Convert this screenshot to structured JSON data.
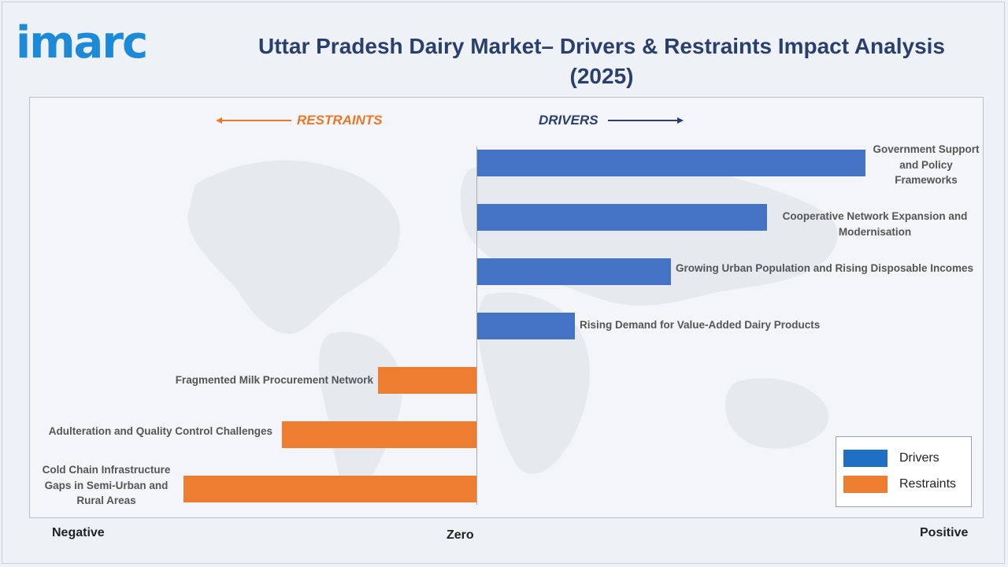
{
  "logo": "imarc",
  "chart_data": {
    "type": "bar",
    "orientation": "horizontal",
    "title": "Uttar Pradesh Dairy Market– Drivers & Restraints Impact Analysis (2025)",
    "direction_labels": {
      "negative": "RESTRAINTS",
      "positive": "DRIVERS"
    },
    "x_axis_labels": {
      "left": "Negative",
      "center": "Zero",
      "right": "Positive"
    },
    "xlim": [
      -1,
      1
    ],
    "categories": [
      "Government Support and Policy Frameworks",
      "Cooperative Network Expansion and Modernisation",
      "Growing Urban Population and Rising Disposable Incomes",
      "Rising Demand for Value-Added Dairy Products",
      "Fragmented Milk Procurement Network",
      "Adulteration and Quality Control Challenges",
      "Cold Chain Infrastructure Gaps in Semi-Urban and Rural Areas"
    ],
    "series": [
      {
        "name": "Drivers",
        "color": "#4472c4",
        "values": [
          0.87,
          0.65,
          0.435,
          0.22,
          0,
          0,
          0
        ]
      },
      {
        "name": "Restraints",
        "color": "#ed7d31",
        "values": [
          0,
          0,
          0,
          0,
          -0.22,
          -0.435,
          -0.655
        ]
      }
    ],
    "legend": {
      "position": "bottom-right",
      "items": [
        {
          "label": "Drivers",
          "color": "#1f6fc5"
        },
        {
          "label": "Restraints",
          "color": "#ed7d31"
        }
      ]
    },
    "grid": false
  }
}
